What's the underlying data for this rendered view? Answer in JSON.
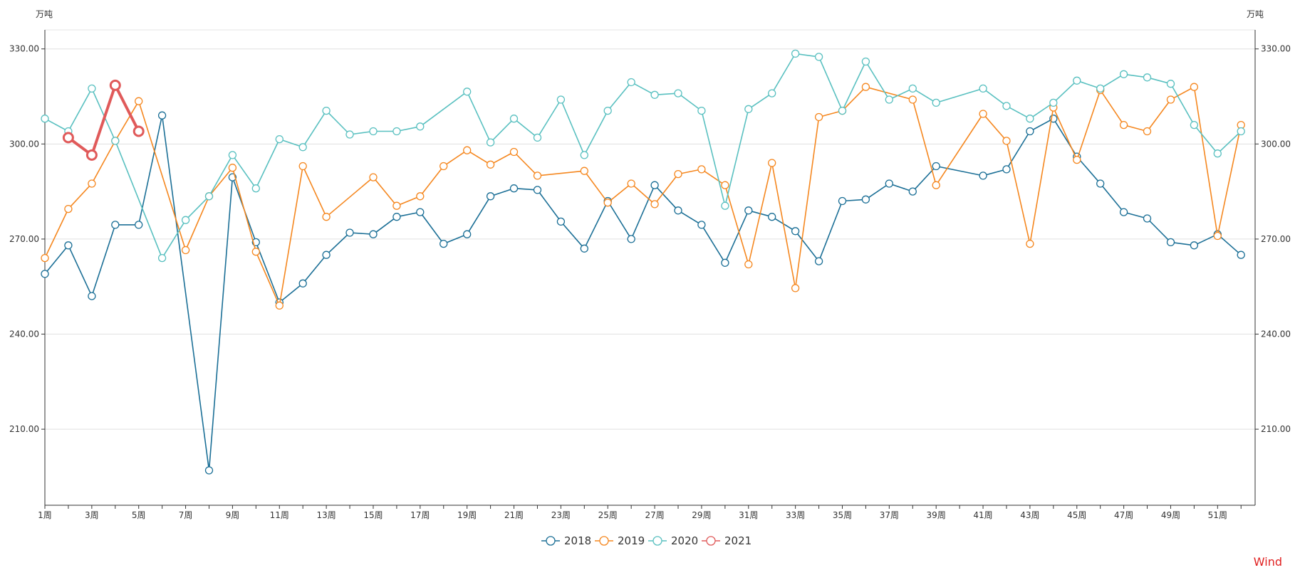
{
  "chart_data": {
    "type": "line",
    "title": "",
    "y_unit_left": "万吨",
    "y_unit_right": "万吨",
    "ylim": [
      186,
      336
    ],
    "yticks": [
      210,
      240,
      270,
      300,
      330
    ],
    "ytick_labels": [
      "210.00",
      "240.00",
      "270.00",
      "300.00",
      "330.00"
    ],
    "x_tick_labels": [
      "1周",
      "3周",
      "5周",
      "7周",
      "9周",
      "11周",
      "13周",
      "15周",
      "17周",
      "19周",
      "21周",
      "23周",
      "25周",
      "27周",
      "29周",
      "31周",
      "33周",
      "35周",
      "37周",
      "39周",
      "41周",
      "43周",
      "45周",
      "47周",
      "49周",
      "51周"
    ],
    "x_count": 53,
    "grid": true,
    "legend_position": "bottom-center",
    "series": [
      {
        "name": "2018",
        "color": "#1b6f96",
        "line_width": 1.6,
        "weeks": [
          1,
          2,
          3,
          4,
          5,
          6,
          8,
          9,
          10,
          11,
          12,
          13,
          14,
          15,
          16,
          17,
          18,
          19,
          20,
          21,
          22,
          23,
          24,
          25,
          26,
          27,
          28,
          29,
          30,
          31,
          32,
          33,
          34,
          35,
          36,
          37,
          38,
          39,
          41,
          42,
          43,
          44,
          45,
          46,
          47,
          48,
          49,
          50,
          51,
          52
        ],
        "values": [
          259,
          268,
          252,
          274.5,
          274.5,
          309,
          197,
          289.5,
          269,
          250,
          256,
          265,
          272,
          271.5,
          277,
          278.5,
          268.5,
          271.5,
          283.5,
          286,
          285.5,
          275.5,
          267,
          282,
          270,
          287,
          279,
          274.5,
          262.5,
          279,
          277,
          272.5,
          263,
          282,
          282.5,
          287.5,
          285,
          293,
          290,
          292,
          304,
          308,
          296,
          287.5,
          278.5,
          276.5,
          269,
          268,
          271.5,
          265
        ]
      },
      {
        "name": "2019",
        "color": "#f5871f",
        "line_width": 1.6,
        "weeks": [
          1,
          2,
          3,
          4,
          5,
          7,
          8,
          9,
          10,
          11,
          12,
          13,
          15,
          16,
          17,
          18,
          19,
          20,
          21,
          22,
          24,
          25,
          26,
          27,
          28,
          29,
          30,
          31,
          32,
          33,
          34,
          35,
          36,
          38,
          39,
          41,
          42,
          43,
          44,
          45,
          46,
          47,
          48,
          49,
          50,
          51,
          52
        ],
        "values": [
          264,
          279.5,
          287.5,
          301,
          313.5,
          266.5,
          283.5,
          292.5,
          266,
          249,
          293,
          277,
          289.5,
          280.5,
          283.5,
          293,
          298,
          293.5,
          297.5,
          290,
          291.5,
          281.5,
          287.5,
          281,
          290.5,
          292,
          287,
          262,
          294,
          254.5,
          308.5,
          310.5,
          318,
          314,
          287,
          309.5,
          301,
          268.5,
          311.5,
          295,
          317,
          306,
          304,
          314,
          318,
          271,
          306
        ]
      },
      {
        "name": "2020",
        "color": "#59c0c0",
        "line_width": 1.6,
        "weeks": [
          1,
          2,
          3,
          4,
          6,
          7,
          8,
          9,
          10,
          11,
          12,
          13,
          14,
          15,
          16,
          17,
          19,
          20,
          21,
          22,
          23,
          24,
          25,
          26,
          27,
          28,
          29,
          30,
          31,
          32,
          33,
          34,
          35,
          36,
          37,
          38,
          39,
          41,
          42,
          43,
          44,
          45,
          46,
          47,
          48,
          49,
          50,
          51,
          52
        ],
        "values": [
          308,
          304,
          317.5,
          301,
          264,
          276,
          283.5,
          296.5,
          286,
          301.5,
          299,
          310.5,
          303,
          304,
          304,
          305.5,
          316.5,
          300.5,
          308,
          302,
          314,
          296.5,
          310.5,
          319.5,
          315.5,
          316,
          310.5,
          280.5,
          311,
          316,
          328.5,
          327.5,
          310.5,
          326,
          314,
          317.5,
          313,
          317.5,
          312,
          308,
          313,
          320,
          317.5,
          322,
          321,
          319,
          306,
          297,
          304
        ]
      },
      {
        "name": "2021",
        "color": "#e05a5a",
        "line_width": 4,
        "weeks": [
          2,
          3,
          4,
          5
        ],
        "values": [
          302,
          296.5,
          318.5,
          304
        ]
      }
    ]
  },
  "watermark": "Wind"
}
